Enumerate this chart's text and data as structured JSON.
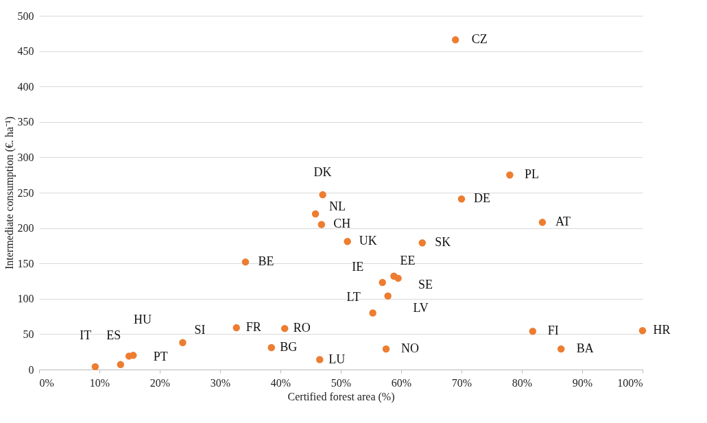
{
  "chart_data": {
    "type": "scatter",
    "xlabel": "Certified forest area (%)",
    "ylabel": "Intermediate consumption (€. ha⁻¹)",
    "x": [
      9.3,
      13.5,
      14.9,
      15.6,
      23.8,
      32.7,
      40.7,
      38.5,
      46.5,
      57.5,
      34.2,
      47,
      45.8,
      46.8,
      51.1,
      63.5,
      58.8,
      59.5,
      56.9,
      57.8,
      55.3,
      69,
      78,
      70,
      83.4,
      81.8,
      86.5,
      100
    ],
    "series": [
      {
        "color": "#ed7d31",
        "values": [
          4,
          7,
          19,
          20,
          38,
          59,
          58,
          31,
          14,
          29,
          152,
          247,
          220,
          205,
          181,
          179,
          132,
          129,
          123,
          104,
          80,
          466,
          275,
          241,
          208,
          54,
          29,
          55
        ]
      }
    ],
    "annotations": [
      {
        "text": "IT",
        "x": 9.3,
        "y": 4
      },
      {
        "text": "ES",
        "x": 13.5,
        "y": 7
      },
      {
        "text": "HU",
        "x": 14.9,
        "y": 19
      },
      {
        "text": "PT",
        "x": 15.6,
        "y": 20
      },
      {
        "text": "SI",
        "x": 23.8,
        "y": 38
      },
      {
        "text": "FR",
        "x": 32.7,
        "y": 59
      },
      {
        "text": "RO",
        "x": 40.7,
        "y": 58
      },
      {
        "text": "BG",
        "x": 38.5,
        "y": 31
      },
      {
        "text": "LU",
        "x": 46.5,
        "y": 14
      },
      {
        "text": "NO",
        "x": 57.5,
        "y": 29
      },
      {
        "text": "BE",
        "x": 34.2,
        "y": 152
      },
      {
        "text": "DK",
        "x": 47,
        "y": 247
      },
      {
        "text": "NL",
        "x": 45.8,
        "y": 220
      },
      {
        "text": "CH",
        "x": 46.8,
        "y": 205
      },
      {
        "text": "UK",
        "x": 51.1,
        "y": 181
      },
      {
        "text": "SK",
        "x": 63.5,
        "y": 179
      },
      {
        "text": "EE",
        "x": 58.8,
        "y": 132
      },
      {
        "text": "SE",
        "x": 59.5,
        "y": 129
      },
      {
        "text": "IE",
        "x": 56.9,
        "y": 123
      },
      {
        "text": "LV",
        "x": 57.8,
        "y": 104
      },
      {
        "text": "LT",
        "x": 55.3,
        "y": 80
      },
      {
        "text": "CZ",
        "x": 69,
        "y": 466
      },
      {
        "text": "PL",
        "x": 78,
        "y": 275
      },
      {
        "text": "DE",
        "x": 70,
        "y": 241
      },
      {
        "text": "AT",
        "x": 83.4,
        "y": 208
      },
      {
        "text": "FI",
        "x": 81.8,
        "y": 54
      },
      {
        "text": "BA",
        "x": 86.5,
        "y": 29
      },
      {
        "text": "HR",
        "x": 100,
        "y": 55
      }
    ],
    "xlim": [
      0,
      100
    ],
    "xticks": [
      {
        "value": 0,
        "label": "0%"
      },
      {
        "value": 10,
        "label": "10%"
      },
      {
        "value": 20,
        "label": "20%"
      },
      {
        "value": 30,
        "label": "30%"
      },
      {
        "value": 40,
        "label": "40%"
      },
      {
        "value": 50,
        "label": "50%"
      },
      {
        "value": 60,
        "label": "60%"
      },
      {
        "value": 70,
        "label": "70%"
      },
      {
        "value": 80,
        "label": "80%"
      },
      {
        "value": 90,
        "label": "90%"
      },
      {
        "value": 100,
        "label": "100%"
      }
    ],
    "ylim": [
      0,
      500
    ],
    "yticks": [
      0,
      50,
      100,
      150,
      200,
      250,
      300,
      350,
      400,
      450,
      500
    ],
    "grid": "y",
    "marker": "circle"
  }
}
